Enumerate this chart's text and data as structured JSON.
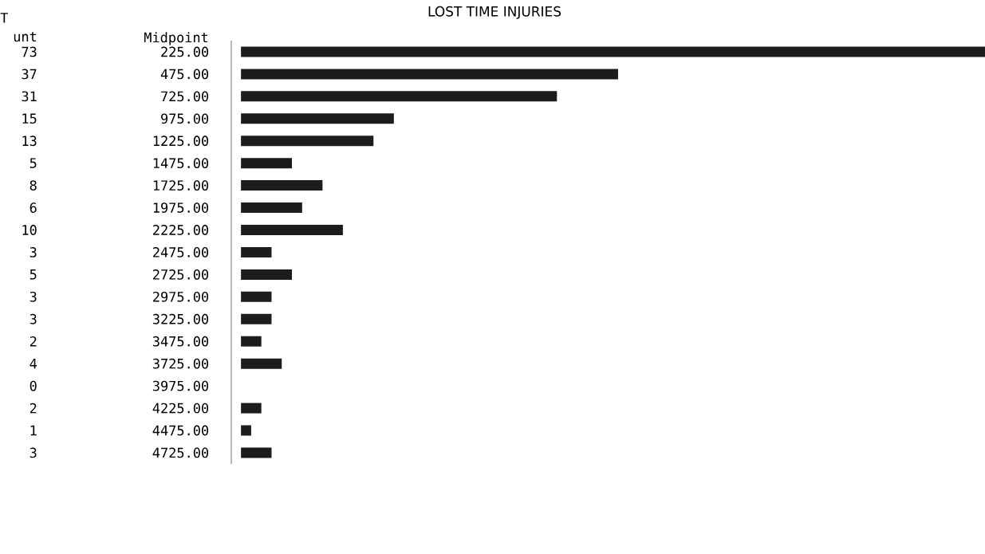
{
  "chart_data": {
    "type": "bar",
    "orientation": "horizontal",
    "title": "LOST TIME INJURIES",
    "ylabel": "Midpoint",
    "annotations": [
      "T",
      "unt"
    ],
    "categories": [
      "225.00",
      "475.00",
      "725.00",
      "975.00",
      "1225.00",
      "1475.00",
      "1725.00",
      "1975.00",
      "2225.00",
      "2475.00",
      "2725.00",
      "2975.00",
      "3225.00",
      "3475.00",
      "3725.00",
      "3975.00",
      "4225.00",
      "4475.00",
      "4725.00"
    ],
    "values": [
      73,
      37,
      31,
      15,
      13,
      5,
      8,
      6,
      10,
      3,
      5,
      3,
      3,
      2,
      4,
      0,
      2,
      1,
      3
    ],
    "color": "#1c1c1c",
    "data_labels": true
  }
}
